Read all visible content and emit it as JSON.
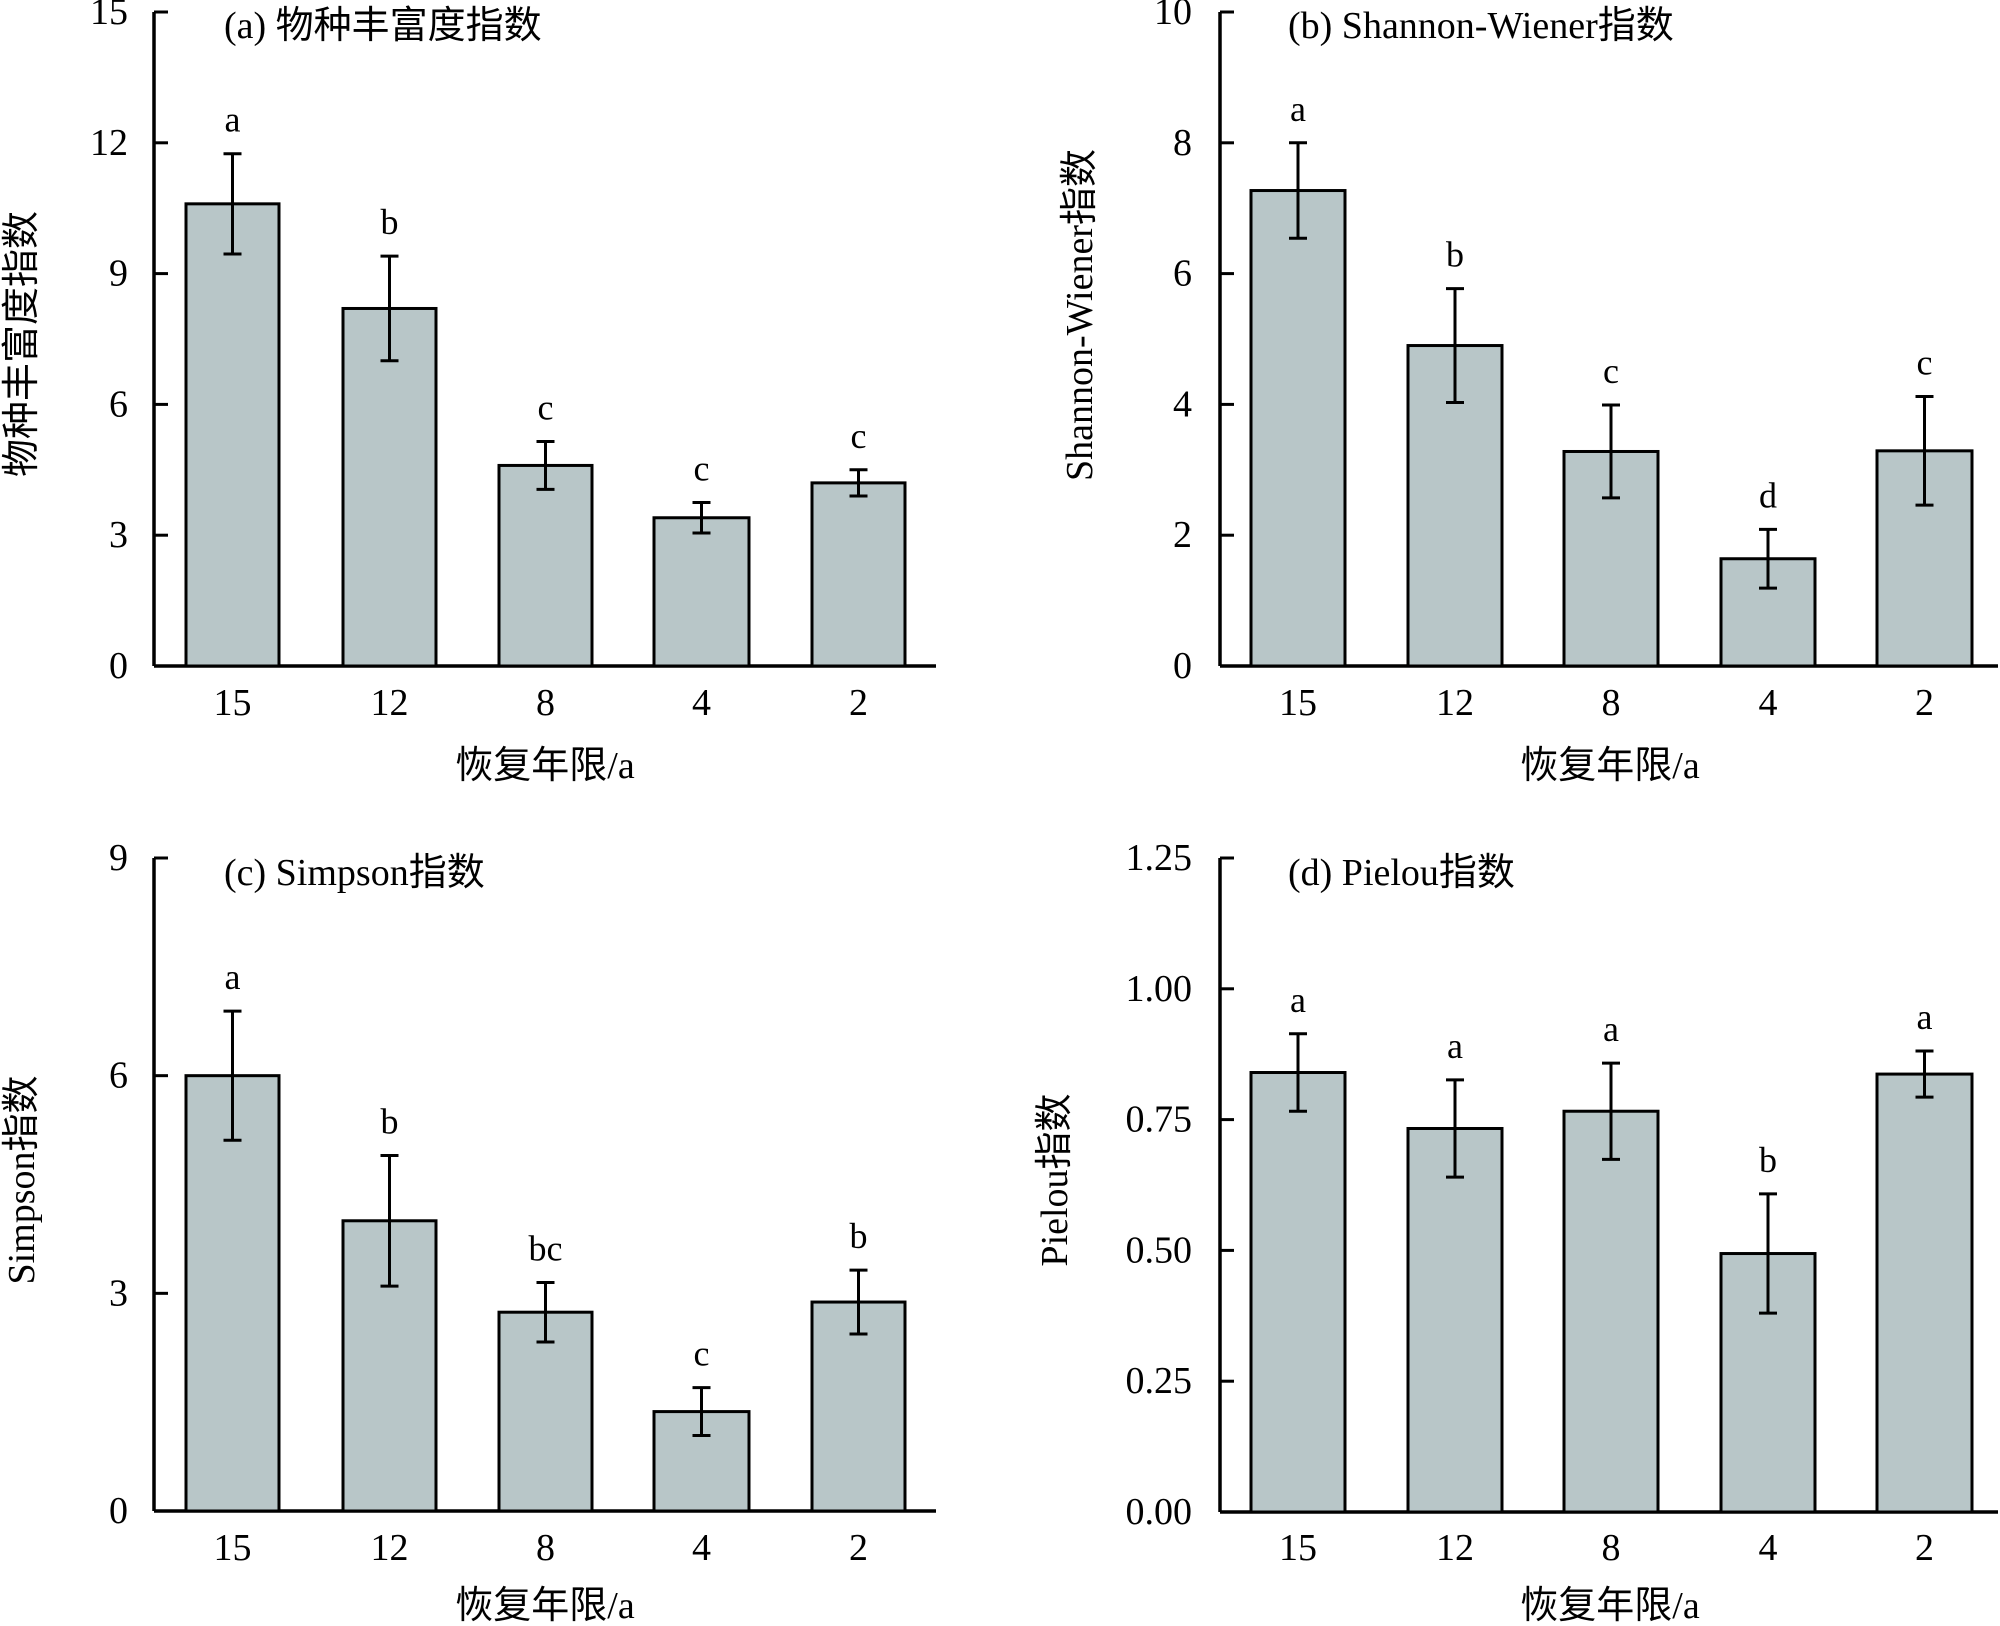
{
  "chart_data": [
    {
      "type": "bar",
      "title": "(a) 物种丰富度指数",
      "xlabel": "恢复年限/a",
      "ylabel": "物种丰富度指数",
      "categories": [
        "15",
        "12",
        "8",
        "4",
        "2"
      ],
      "values": [
        10.6,
        8.2,
        4.6,
        3.4,
        4.2
      ],
      "errors": [
        1.15,
        1.2,
        0.55,
        0.35,
        0.3
      ],
      "significance": [
        "a",
        "b",
        "c",
        "c",
        "c"
      ],
      "ylim": [
        0,
        15
      ],
      "yticks": [
        "0",
        "3",
        "6",
        "9",
        "12",
        "15"
      ],
      "ytick_values": [
        0,
        3,
        6,
        9,
        12,
        15
      ],
      "grid": false
    },
    {
      "type": "bar",
      "title": "(b) Shannon-Wiener指数",
      "xlabel": "恢复年限/a",
      "ylabel": "Shannon-Wiener指数",
      "categories": [
        "15",
        "12",
        "8",
        "4",
        "2"
      ],
      "values": [
        7.27,
        4.9,
        3.28,
        1.64,
        3.29
      ],
      "errors": [
        0.73,
        0.87,
        0.71,
        0.45,
        0.83
      ],
      "significance": [
        "a",
        "b",
        "c",
        "d",
        "c"
      ],
      "ylim": [
        0,
        10
      ],
      "yticks": [
        "0",
        "2",
        "4",
        "6",
        "8",
        "10"
      ],
      "ytick_values": [
        0,
        2,
        4,
        6,
        8,
        10
      ],
      "grid": false
    },
    {
      "type": "bar",
      "title": "(c) Simpson指数",
      "xlabel": "恢复年限/a",
      "ylabel": "Simpson指数",
      "categories": [
        "15",
        "12",
        "8",
        "4",
        "2"
      ],
      "values": [
        6.0,
        4.0,
        2.74,
        1.37,
        2.88
      ],
      "errors": [
        0.89,
        0.9,
        0.41,
        0.33,
        0.44
      ],
      "significance": [
        "a",
        "b",
        "bc",
        "c",
        "b"
      ],
      "ylim": [
        0,
        9
      ],
      "yticks": [
        "0",
        "3",
        "6",
        "9"
      ],
      "ytick_values": [
        0,
        3,
        6,
        9
      ],
      "grid": false
    },
    {
      "type": "bar",
      "title": "(d) Pielou指数",
      "xlabel": "恢复年限/a",
      "ylabel": "Pielou指数",
      "categories": [
        "15",
        "12",
        "8",
        "4",
        "2"
      ],
      "values": [
        0.84,
        0.733,
        0.766,
        0.494,
        0.837
      ],
      "errors": [
        0.074,
        0.093,
        0.092,
        0.114,
        0.044
      ],
      "significance": [
        "a",
        "a",
        "a",
        "b",
        "a"
      ],
      "ylim": [
        0,
        1.25
      ],
      "yticks": [
        "0.00",
        "0.25",
        "0.50",
        "0.75",
        "1.00",
        "1.25"
      ],
      "ytick_values": [
        0,
        0.25,
        0.5,
        0.75,
        1.0,
        1.25
      ],
      "grid": false
    }
  ],
  "colors": {
    "bar_fill": "#b8c6c8",
    "bar_stroke": "#000000"
  }
}
